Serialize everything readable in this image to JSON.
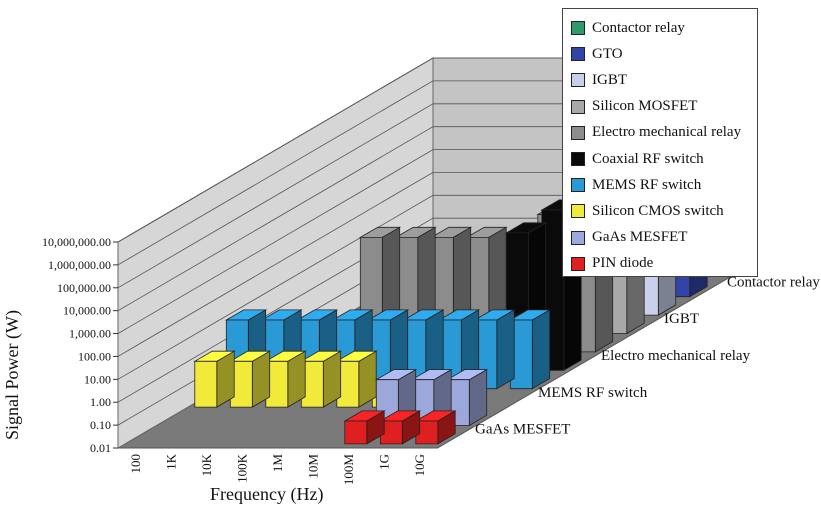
{
  "chart_data": {
    "type": "bar",
    "variant": "3d",
    "title": "",
    "xlabel": "Frequency (Hz)",
    "ylabel": "Signal Power (W)",
    "zlabel": "",
    "y_scale": "log",
    "ylim": [
      0.01,
      10000000
    ],
    "y_ticks": [
      "0.01",
      "0.10",
      "1.00",
      "10.00",
      "100.00",
      "1,000.00",
      "10,000.00",
      "100,000.00",
      "1,000,000.00",
      "10,000,000.00"
    ],
    "categories": [
      "100",
      "1K",
      "10K",
      "100K",
      "1M",
      "10M",
      "100M",
      "1G",
      "10G"
    ],
    "depth_labels": [
      "Contactor relay",
      "IGBT",
      "Electro mechanical relay",
      "MEMS RF switch",
      "GaAs MESFET"
    ],
    "legend_position": "top-right",
    "grid": true,
    "series": [
      {
        "name": "Contactor relay",
        "color": "#2e9a6a",
        "values": [
          null,
          null,
          null,
          null,
          null,
          null,
          null,
          10000000,
          null
        ]
      },
      {
        "name": "GTO",
        "color": "#3244a8",
        "values": [
          null,
          null,
          null,
          null,
          null,
          null,
          null,
          5000000,
          3000000
        ]
      },
      {
        "name": "IGBT",
        "color": "#c8d0ec",
        "values": [
          null,
          null,
          null,
          null,
          null,
          null,
          null,
          1000000,
          500000
        ]
      },
      {
        "name": "Silicon MOSFET",
        "color": "#a8a8a8",
        "values": [
          null,
          null,
          100,
          100,
          100,
          100,
          100,
          150,
          120
        ]
      },
      {
        "name": "Electro mechanical relay",
        "color": "#8c8c8c",
        "values": [
          null,
          null,
          1000,
          1000,
          1000,
          1000,
          1000,
          10000,
          100000
        ]
      },
      {
        "name": "Coaxial RF switch",
        "color": "#0a0a0a",
        "values": [
          null,
          null,
          null,
          null,
          null,
          null,
          null,
          10000,
          100000
        ]
      },
      {
        "name": "MEMS RF switch",
        "color": "#2a9ad6",
        "values": [
          10,
          10,
          10,
          10,
          10,
          10,
          10,
          10,
          10
        ]
      },
      {
        "name": "Silicon CMOS switch",
        "color": "#f2ea3a",
        "values": [
          1,
          1,
          1,
          1,
          1,
          0.1,
          null,
          null,
          null
        ]
      },
      {
        "name": "GaAs MESFET",
        "color": "#9ca8dc",
        "values": [
          null,
          null,
          null,
          null,
          null,
          null,
          1,
          1,
          1
        ]
      },
      {
        "name": "PIN diode",
        "color": "#e02020",
        "values": [
          null,
          null,
          null,
          null,
          null,
          null,
          0.1,
          0.1,
          0.1
        ]
      }
    ]
  }
}
